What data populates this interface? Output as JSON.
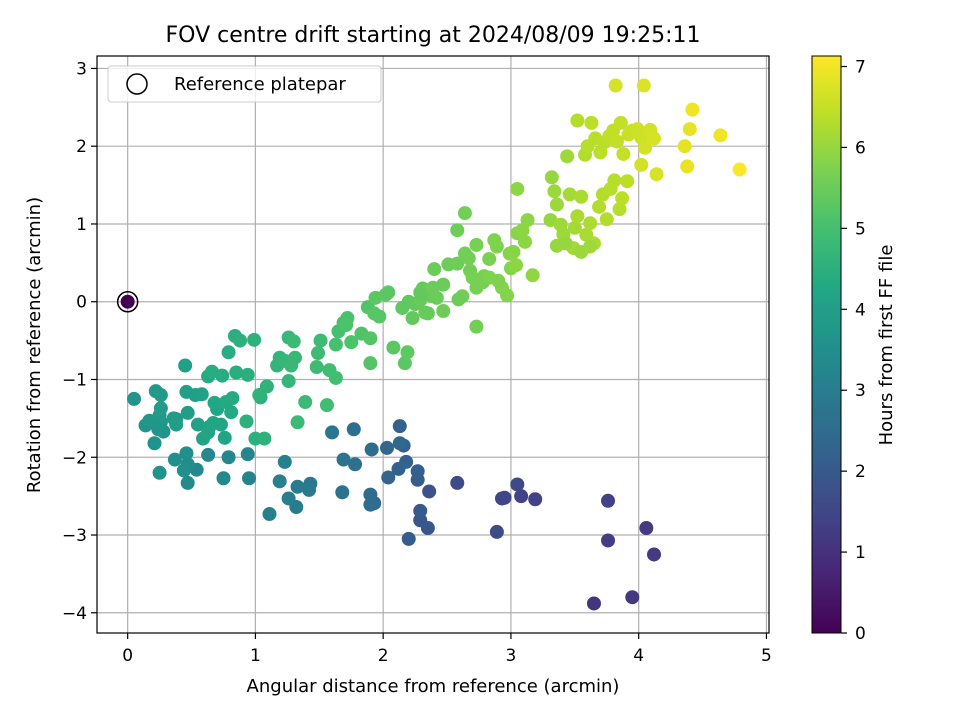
{
  "chart_data": {
    "type": "scatter",
    "title": "FOV centre drift starting at 2024/08/09 19:25:11",
    "xlabel": "Angular distance from reference (arcmin)",
    "ylabel": "Rotation from reference (arcmin)",
    "xlim": [
      -0.24,
      5.02
    ],
    "ylim": [
      -4.26,
      3.16
    ],
    "x_ticks": [
      0,
      1,
      2,
      3,
      4,
      5
    ],
    "y_ticks": [
      -4,
      -3,
      -2,
      -1,
      0,
      1,
      2,
      3
    ],
    "grid": true,
    "legend": {
      "placement": "top-left",
      "entries": [
        "Reference platepar"
      ]
    },
    "reference_point": {
      "x": 0,
      "y": 0
    },
    "colorbar": {
      "label": "Hours from first FF file",
      "range": [
        0,
        7.13
      ],
      "ticks": [
        0,
        1,
        2,
        3,
        4,
        5,
        6,
        7
      ],
      "colormap": "viridis"
    },
    "points": [
      [
        0.0,
        0.0,
        0.0
      ],
      [
        3.65,
        -3.88,
        1.1
      ],
      [
        3.95,
        -3.8,
        1.15
      ],
      [
        4.12,
        -3.25,
        1.2
      ],
      [
        4.06,
        -2.91,
        1.25
      ],
      [
        3.76,
        -3.07,
        1.3
      ],
      [
        3.76,
        -2.56,
        1.35
      ],
      [
        3.19,
        -2.54,
        1.4
      ],
      [
        3.08,
        -2.5,
        1.45
      ],
      [
        2.93,
        -2.53,
        1.5
      ],
      [
        2.95,
        -2.52,
        1.5
      ],
      [
        3.05,
        -2.35,
        1.55
      ],
      [
        2.89,
        -2.96,
        1.6
      ],
      [
        2.58,
        -2.33,
        1.65
      ],
      [
        2.36,
        -2.44,
        1.8
      ],
      [
        2.35,
        -2.91,
        1.9
      ],
      [
        2.29,
        -2.81,
        1.95
      ],
      [
        2.29,
        -2.69,
        2.0
      ],
      [
        2.2,
        -3.05,
        2.05
      ],
      [
        2.27,
        -2.29,
        2.1
      ],
      [
        2.27,
        -2.18,
        2.15
      ],
      [
        2.18,
        -2.06,
        2.2
      ],
      [
        2.16,
        -1.85,
        2.2
      ],
      [
        2.13,
        -1.6,
        2.25
      ],
      [
        2.12,
        -2.15,
        2.25
      ],
      [
        2.04,
        -2.26,
        2.3
      ],
      [
        2.03,
        -1.88,
        2.35
      ],
      [
        2.13,
        -1.82,
        2.4
      ],
      [
        1.93,
        -2.59,
        2.45
      ],
      [
        1.9,
        -2.61,
        2.5
      ],
      [
        1.9,
        -2.48,
        2.5
      ],
      [
        1.91,
        -1.9,
        2.55
      ],
      [
        1.77,
        -1.64,
        2.6
      ],
      [
        1.78,
        -2.09,
        2.65
      ],
      [
        1.68,
        -2.45,
        2.7
      ],
      [
        1.69,
        -2.03,
        2.75
      ],
      [
        1.6,
        -1.68,
        2.8
      ],
      [
        1.43,
        -2.34,
        2.85
      ],
      [
        1.42,
        -2.42,
        2.9
      ],
      [
        1.33,
        -2.38,
        2.9
      ],
      [
        1.32,
        -2.64,
        2.95
      ],
      [
        1.26,
        -2.53,
        3.0
      ],
      [
        1.23,
        -2.06,
        3.05
      ],
      [
        1.19,
        -2.31,
        3.05
      ],
      [
        1.11,
        -2.73,
        3.1
      ],
      [
        0.95,
        -2.27,
        3.15
      ],
      [
        0.94,
        -1.96,
        3.2
      ],
      [
        0.79,
        -2.0,
        3.25
      ],
      [
        0.75,
        -2.27,
        3.3
      ],
      [
        0.63,
        -1.97,
        3.3
      ],
      [
        0.54,
        -2.16,
        3.35
      ],
      [
        0.47,
        -2.33,
        3.4
      ],
      [
        0.47,
        -2.09,
        3.45
      ],
      [
        0.44,
        -2.17,
        3.5
      ],
      [
        0.46,
        -1.95,
        3.5
      ],
      [
        0.37,
        -2.03,
        3.55
      ],
      [
        0.25,
        -2.2,
        3.6
      ],
      [
        0.21,
        -1.82,
        3.6
      ],
      [
        0.24,
        -1.64,
        3.65
      ],
      [
        0.28,
        -1.67,
        3.7
      ],
      [
        0.14,
        -1.59,
        3.7
      ],
      [
        0.17,
        -1.53,
        3.75
      ],
      [
        0.26,
        -1.55,
        3.75
      ],
      [
        0.25,
        -1.46,
        3.8
      ],
      [
        0.22,
        -1.15,
        3.8
      ],
      [
        0.26,
        -1.2,
        3.85
      ],
      [
        0.26,
        -1.37,
        3.85
      ],
      [
        0.36,
        -1.5,
        3.9
      ],
      [
        0.38,
        -1.51,
        3.9
      ],
      [
        0.38,
        -1.58,
        3.95
      ],
      [
        0.05,
        -1.25,
        3.7
      ],
      [
        0.47,
        -1.43,
        3.95
      ],
      [
        0.46,
        -1.16,
        4.0
      ],
      [
        0.53,
        -1.2,
        4.0
      ],
      [
        0.58,
        -1.19,
        4.05
      ],
      [
        0.55,
        -1.58,
        4.05
      ],
      [
        0.59,
        -1.76,
        4.1
      ],
      [
        0.64,
        -1.61,
        4.1
      ],
      [
        0.63,
        -1.68,
        4.15
      ],
      [
        0.67,
        -1.56,
        4.15
      ],
      [
        0.73,
        -1.58,
        4.2
      ],
      [
        0.76,
        -1.75,
        4.2
      ],
      [
        0.7,
        -1.38,
        4.25
      ],
      [
        0.68,
        -1.3,
        4.25
      ],
      [
        0.77,
        -1.29,
        4.3
      ],
      [
        0.81,
        -1.42,
        4.3
      ],
      [
        0.82,
        -1.24,
        4.35
      ],
      [
        0.63,
        -0.96,
        4.35
      ],
      [
        0.66,
        -0.9,
        4.4
      ],
      [
        0.74,
        -0.95,
        4.4
      ],
      [
        0.85,
        -0.91,
        4.45
      ],
      [
        0.94,
        -0.94,
        4.45
      ],
      [
        0.93,
        -1.54,
        4.5
      ],
      [
        1.0,
        -1.76,
        4.5
      ],
      [
        1.07,
        -1.76,
        4.55
      ],
      [
        1.04,
        -1.23,
        4.55
      ],
      [
        1.09,
        -1.09,
        4.6
      ],
      [
        1.03,
        -1.2,
        4.6
      ],
      [
        1.17,
        -0.82,
        4.65
      ],
      [
        1.19,
        -0.72,
        4.65
      ],
      [
        1.23,
        -0.76,
        4.7
      ],
      [
        1.26,
        -1.02,
        4.7
      ],
      [
        1.28,
        -0.82,
        4.75
      ],
      [
        1.31,
        -0.72,
        4.75
      ],
      [
        1.33,
        -1.55,
        4.8
      ],
      [
        1.39,
        -1.29,
        4.8
      ],
      [
        1.48,
        -0.84,
        4.85
      ],
      [
        1.49,
        -0.66,
        4.85
      ],
      [
        1.56,
        -1.33,
        4.9
      ],
      [
        1.58,
        -0.88,
        4.9
      ],
      [
        1.63,
        -0.98,
        4.95
      ],
      [
        0.45,
        -0.82,
        4.0
      ],
      [
        0.79,
        -0.65,
        4.4
      ],
      [
        0.84,
        -0.44,
        4.45
      ],
      [
        0.88,
        -0.5,
        4.5
      ],
      [
        0.99,
        -0.49,
        4.55
      ],
      [
        1.26,
        -0.46,
        4.75
      ],
      [
        1.3,
        -0.51,
        4.8
      ],
      [
        1.51,
        -0.5,
        4.85
      ],
      [
        1.63,
        -0.55,
        5.0
      ],
      [
        1.65,
        -0.38,
        5.0
      ],
      [
        1.69,
        -0.27,
        5.05
      ],
      [
        1.72,
        -0.21,
        5.05
      ],
      [
        1.71,
        -0.3,
        5.1
      ],
      [
        1.75,
        -0.52,
        5.1
      ],
      [
        1.83,
        -0.41,
        5.15
      ],
      [
        1.88,
        -0.07,
        5.15
      ],
      [
        1.9,
        -0.47,
        5.2
      ],
      [
        1.9,
        -0.79,
        5.2
      ],
      [
        1.93,
        -0.15,
        5.25
      ],
      [
        1.97,
        -0.19,
        5.25
      ],
      [
        2.02,
        0.09,
        5.3
      ],
      [
        2.04,
        0.12,
        5.3
      ],
      [
        1.94,
        0.05,
        5.3
      ],
      [
        2.08,
        -0.59,
        5.3
      ],
      [
        2.17,
        -0.79,
        5.3
      ],
      [
        2.19,
        -0.65,
        5.35
      ],
      [
        2.15,
        -0.08,
        5.35
      ],
      [
        2.2,
        0.0,
        5.35
      ],
      [
        2.23,
        -0.21,
        5.4
      ],
      [
        2.25,
        -0.03,
        5.4
      ],
      [
        2.29,
        0.12,
        5.4
      ],
      [
        2.31,
        0.17,
        5.45
      ],
      [
        2.29,
        0.02,
        5.45
      ],
      [
        2.35,
        -0.15,
        5.45
      ],
      [
        2.38,
        0.07,
        5.5
      ],
      [
        2.39,
        0.18,
        5.5
      ],
      [
        2.42,
        0.05,
        5.5
      ],
      [
        2.47,
        -0.12,
        5.55
      ],
      [
        2.51,
        0.48,
        5.55
      ],
      [
        2.58,
        0.49,
        5.55
      ],
      [
        2.62,
        0.07,
        5.6
      ],
      [
        2.64,
        0.62,
        5.6
      ],
      [
        2.68,
        0.4,
        5.6
      ],
      [
        2.7,
        0.31,
        5.65
      ],
      [
        2.73,
        0.18,
        5.65
      ],
      [
        2.79,
        0.33,
        5.7
      ],
      [
        2.83,
        0.55,
        5.7
      ],
      [
        2.87,
        0.79,
        5.75
      ],
      [
        2.89,
        0.71,
        5.75
      ],
      [
        2.93,
        0.18,
        5.8
      ],
      [
        2.97,
        0.08,
        5.8
      ],
      [
        3.0,
        0.43,
        5.8
      ],
      [
        3.02,
        0.64,
        5.85
      ],
      [
        3.05,
        0.88,
        5.85
      ],
      [
        3.09,
        0.92,
        5.9
      ],
      [
        3.11,
        0.77,
        5.9
      ],
      [
        3.13,
        1.05,
        5.9
      ],
      [
        3.17,
        0.34,
        5.95
      ],
      [
        2.64,
        1.14,
        5.6
      ],
      [
        2.58,
        0.92,
        5.55
      ],
      [
        2.73,
        -0.32,
        5.6
      ],
      [
        2.59,
        0.03,
        5.55
      ],
      [
        2.67,
        0.56,
        5.6
      ],
      [
        2.73,
        0.73,
        5.65
      ],
      [
        2.78,
        0.25,
        5.65
      ],
      [
        3.05,
        1.45,
        5.9
      ],
      [
        3.31,
        1.05,
        6.0
      ],
      [
        3.32,
        1.6,
        6.0
      ],
      [
        3.34,
        1.42,
        6.05
      ],
      [
        3.36,
        1.25,
        6.05
      ],
      [
        3.39,
        0.99,
        6.1
      ],
      [
        3.41,
        0.87,
        6.1
      ],
      [
        3.44,
        1.87,
        6.1
      ],
      [
        3.46,
        1.38,
        6.15
      ],
      [
        3.49,
        0.69,
        6.15
      ],
      [
        3.5,
        0.95,
        6.15
      ],
      [
        3.52,
        1.1,
        6.2
      ],
      [
        3.55,
        1.35,
        6.2
      ],
      [
        3.59,
        0.86,
        6.2
      ],
      [
        3.62,
        1.01,
        6.25
      ],
      [
        3.65,
        0.75,
        6.25
      ],
      [
        3.69,
        1.22,
        6.3
      ],
      [
        3.72,
        1.38,
        6.3
      ],
      [
        3.75,
        1.06,
        6.3
      ],
      [
        3.78,
        1.45,
        6.35
      ],
      [
        3.81,
        1.56,
        6.35
      ],
      [
        3.85,
        1.19,
        6.35
      ],
      [
        3.87,
        1.33,
        6.4
      ],
      [
        3.91,
        1.55,
        6.4
      ],
      [
        3.58,
        1.89,
        6.3
      ],
      [
        3.6,
        2.0,
        6.35
      ],
      [
        3.66,
        2.1,
        6.35
      ],
      [
        3.7,
        1.92,
        6.4
      ],
      [
        3.73,
        2.05,
        6.4
      ],
      [
        3.77,
        2.13,
        6.45
      ],
      [
        3.8,
        2.2,
        6.45
      ],
      [
        3.83,
        2.06,
        6.5
      ],
      [
        3.86,
        2.3,
        6.5
      ],
      [
        3.88,
        1.9,
        6.5
      ],
      [
        3.92,
        2.15,
        6.55
      ],
      [
        3.95,
        2.2,
        6.55
      ],
      [
        3.99,
        2.22,
        6.6
      ],
      [
        4.02,
        2.11,
        6.6
      ],
      [
        4.05,
        1.98,
        6.65
      ],
      [
        4.09,
        2.21,
        6.65
      ],
      [
        4.12,
        2.1,
        6.7
      ],
      [
        3.63,
        2.3,
        6.4
      ],
      [
        3.52,
        2.33,
        6.3
      ],
      [
        4.04,
        2.78,
        6.75
      ],
      [
        3.82,
        2.78,
        6.7
      ],
      [
        4.02,
        1.76,
        6.65
      ],
      [
        4.14,
        1.64,
        6.7
      ],
      [
        4.36,
        2.0,
        6.85
      ],
      [
        4.38,
        1.74,
        6.9
      ],
      [
        4.4,
        2.22,
        6.9
      ],
      [
        4.42,
        2.47,
        6.95
      ],
      [
        4.64,
        2.14,
        7.0
      ],
      [
        4.79,
        1.7,
        7.1
      ],
      [
        3.43,
        0.75,
        6.0
      ],
      [
        3.36,
        0.72,
        6.0
      ],
      [
        3.55,
        0.64,
        6.05
      ],
      [
        3.62,
        0.71,
        6.1
      ],
      [
        2.99,
        0.62,
        5.85
      ],
      [
        3.04,
        0.47,
        5.9
      ],
      [
        2.83,
        0.31,
        5.75
      ],
      [
        2.9,
        0.27,
        5.75
      ],
      [
        2.4,
        0.42,
        5.5
      ],
      [
        2.33,
        -0.14,
        5.45
      ],
      [
        2.3,
        0.09,
        5.4
      ],
      [
        2.47,
        0.22,
        5.5
      ]
    ]
  }
}
